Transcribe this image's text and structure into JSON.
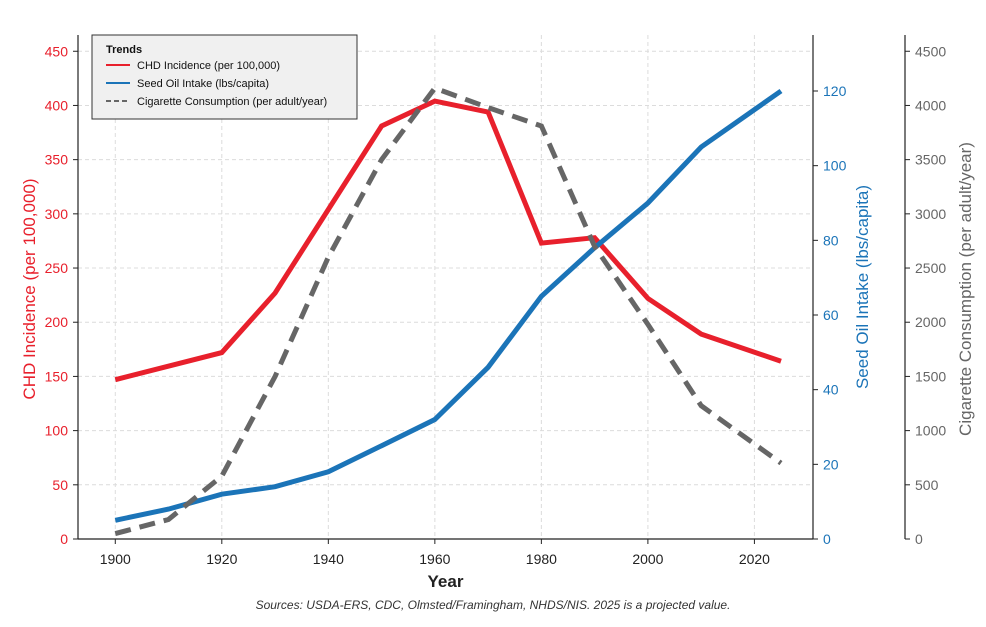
{
  "chart_data": {
    "type": "line",
    "xlabel": "Year",
    "x": [
      1900,
      1910,
      1920,
      1930,
      1940,
      1950,
      1960,
      1970,
      1980,
      1990,
      2000,
      2010,
      2020,
      2025
    ],
    "xlim": [
      1893,
      2031
    ],
    "xticks": [
      1900,
      1920,
      1940,
      1960,
      1980,
      2000,
      2020
    ],
    "grid": true,
    "legend": {
      "title": "Trends",
      "placement": "top-left"
    },
    "series": [
      {
        "name": "CHD Incidence (per 100,000)",
        "axis": "left",
        "color": "#e8202c",
        "dash": "solid",
        "x": [
          1900,
          1920,
          1930,
          1940,
          1950,
          1960,
          1970,
          1980,
          1990,
          2000,
          2010,
          2025
        ],
        "values": [
          147,
          172,
          227,
          304,
          381,
          404,
          394,
          273,
          278,
          222,
          189,
          164
        ]
      },
      {
        "name": "Seed Oil Intake (lbs/capita)",
        "axis": "right",
        "color": "#1b74b8",
        "dash": "solid",
        "x": [
          1900,
          1910,
          1920,
          1930,
          1940,
          1950,
          1960,
          1970,
          1980,
          1990,
          2000,
          2010,
          2020,
          2025
        ],
        "values": [
          5,
          8,
          12,
          14,
          18,
          25,
          32,
          46,
          65,
          78,
          90,
          105,
          115,
          120
        ]
      },
      {
        "name": "Cigarette Consumption (per adult/year)",
        "axis": "right2",
        "color": "#666666",
        "dash": "dashed",
        "x": [
          1900,
          1910,
          1920,
          1930,
          1940,
          1950,
          1960,
          1970,
          1980,
          1990,
          2000,
          2010,
          2025
        ],
        "values": [
          50,
          180,
          580,
          1500,
          2600,
          3500,
          4160,
          3980,
          3810,
          2700,
          1980,
          1230,
          700
        ]
      }
    ],
    "axes": {
      "left": {
        "label": "CHD Incidence (per 100,000)",
        "color": "#e8202c",
        "ylim": [
          0,
          465
        ],
        "ticks": [
          0,
          50,
          100,
          150,
          200,
          250,
          300,
          350,
          400,
          450
        ]
      },
      "right": {
        "label": "Seed Oil Intake (lbs/capita)",
        "color": "#1b74b8",
        "ylim": [
          0,
          135
        ],
        "ticks": [
          0,
          20,
          40,
          60,
          80,
          100,
          120
        ]
      },
      "right2": {
        "label": "Cigarette Consumption (per adult/year)",
        "color": "#666666",
        "ylim": [
          0,
          4650
        ],
        "ticks": [
          0,
          500,
          1000,
          1500,
          2000,
          2500,
          3000,
          3500,
          4000,
          4500
        ]
      }
    }
  },
  "footnote": "Sources: USDA-ERS, CDC, Olmsted/Framingham, NHDS/NIS. 2025 is a projected value."
}
